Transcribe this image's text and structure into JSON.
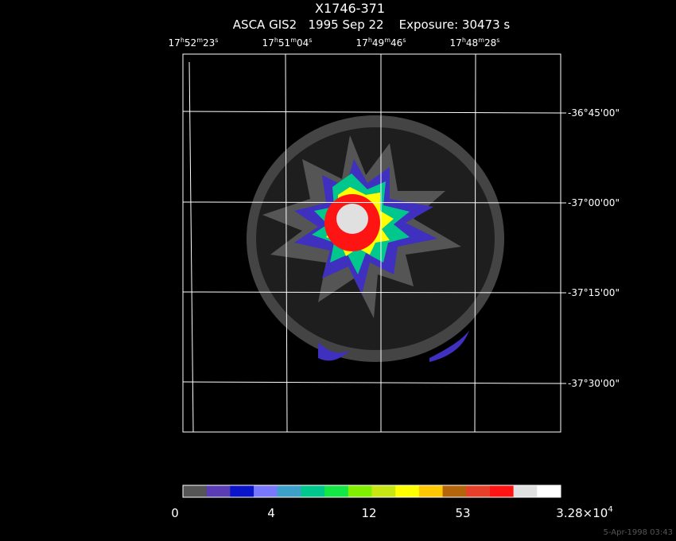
{
  "title": "X1746-371",
  "subtitle": "ASCA GIS2   1995 Sep 22    Exposure: 30473 s",
  "ra_labels": [
    [
      "17",
      "h",
      "52",
      "m",
      "23",
      "s"
    ],
    [
      "17",
      "h",
      "51",
      "m",
      "04",
      "s"
    ],
    [
      "17",
      "h",
      "49",
      "m",
      "46",
      "s"
    ],
    [
      "17",
      "h",
      "48",
      "m",
      "28",
      "s"
    ]
  ],
  "dec_labels": [
    "-36°45'00\"",
    "-37°00'00\"",
    "-37°15'00\"",
    "-37°30'00\""
  ],
  "colorbar": {
    "colors": [
      "#555555",
      "#5a3cb4",
      "#0a14c8",
      "#7878ff",
      "#3ca0c8",
      "#00c88c",
      "#14e646",
      "#80f000",
      "#c8e614",
      "#ffff00",
      "#ffc800",
      "#b4640a",
      "#e6402a",
      "#ff1414",
      "#e0e0e0",
      "#ffffff"
    ],
    "labels": [
      "0",
      "4",
      "12",
      "53",
      [
        "3.28×10",
        "4"
      ]
    ]
  },
  "footer": "5-Apr-1998 03:43"
}
